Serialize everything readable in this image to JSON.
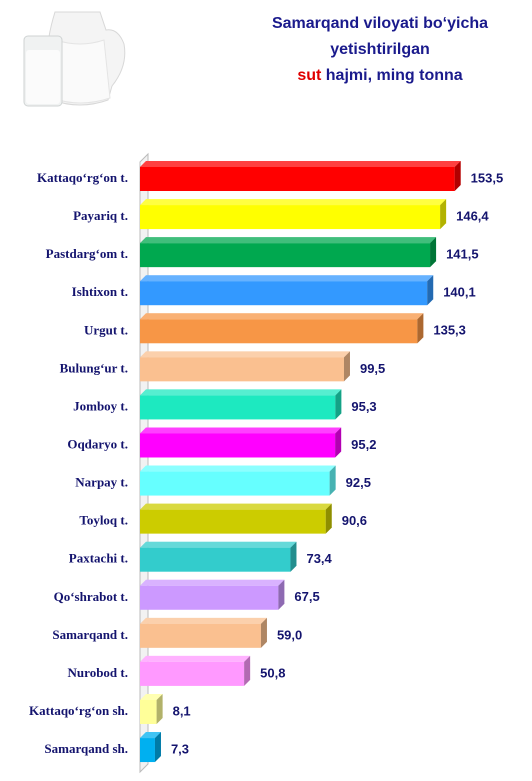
{
  "chart_data": {
    "type": "bar",
    "orientation": "horizontal",
    "title": {
      "line1": "Samarqand viloyati bo‘yicha",
      "line2": "yetishtirilgan",
      "highlight": "sut",
      "line3": "hajmi, ming tonna"
    },
    "categories": [
      "Kattaqo‘rg‘on t.",
      "Payariq t.",
      "Pastdarg‘om t.",
      "Ishtixon t.",
      "Urgut t.",
      "Bulung‘ur t.",
      "Jomboy t.",
      "Oqdaryo t.",
      "Narpay t.",
      "Toyloq t.",
      "Paxtachi t.",
      "Qo‘shrabot t.",
      "Samarqand t.",
      "Nurobod t.",
      "Kattaqo‘rg‘on sh.",
      "Samarqand sh."
    ],
    "values": [
      153.5,
      146.4,
      141.5,
      140.1,
      135.3,
      99.5,
      95.3,
      95.2,
      92.5,
      90.6,
      73.4,
      67.5,
      59.0,
      50.8,
      8.1,
      7.3
    ],
    "value_labels": [
      "153,5",
      "146,4",
      "141,5",
      "140,1",
      "135,3",
      "99,5",
      "95,3",
      "95,2",
      "92,5",
      "90,6",
      "73,4",
      "67,5",
      "59,0",
      "50,8",
      "8,1",
      "7,3"
    ],
    "colors": [
      "#ff0000",
      "#ffff00",
      "#00a84f",
      "#3399ff",
      "#f79646",
      "#fac090",
      "#1de9c0",
      "#ff00ff",
      "#66ffff",
      "#cccc00",
      "#33cccc",
      "#cc99ff",
      "#fac090",
      "#ff99ff",
      "#ffff99",
      "#00b0f0"
    ],
    "xlim": [
      0,
      160
    ]
  }
}
